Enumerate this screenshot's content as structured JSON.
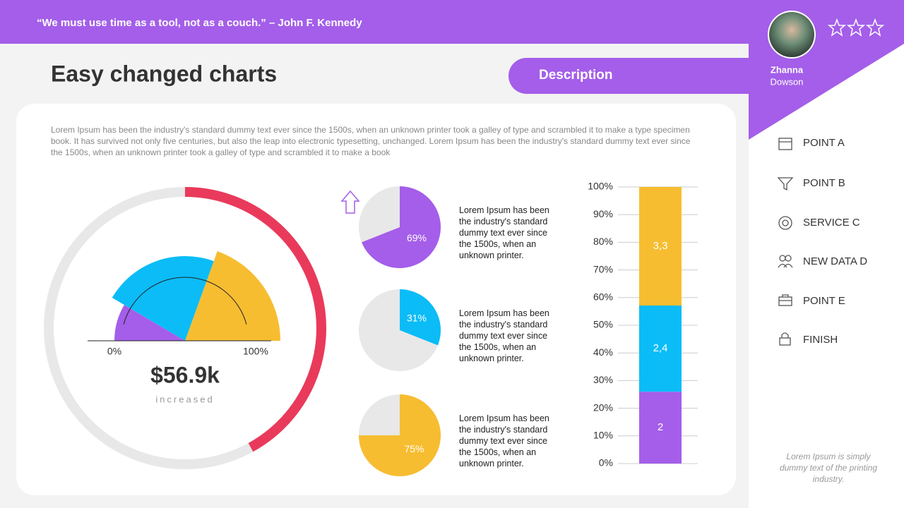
{
  "header": {
    "quote": "“We must use time as a tool, not as a couch.” – John F. Kennedy"
  },
  "title": "Easy changed charts",
  "description_tab": "Description",
  "body_text": "Lorem Ipsum has been the industry's standard dummy text ever since the 1500s, when an unknown printer took a galley of type and scrambled it to make a type specimen book. It has survived not only five centuries, but also the leap into electronic typesetting, unchanged. Lorem Ipsum has been the industry's standard dummy text ever since the 1500s, when an unknown printer took a galley of type and scrambled it to make a book",
  "chart_data": [
    {
      "type": "gauge",
      "values": [
        17,
        44,
        39
      ],
      "colors": [
        "#a45ee9",
        "#0bbcf7",
        "#f7bd31"
      ],
      "xlim": [
        0,
        100
      ],
      "xticks": [
        {
          "value": 0,
          "label": "0%"
        },
        {
          "value": 100,
          "label": "100%"
        }
      ],
      "ring": {
        "value": 42,
        "color": "#e93a5b",
        "track_color": "#e8e8e8"
      },
      "value_label": "$56.9k",
      "caption": "increased"
    },
    {
      "type": "pie",
      "values": [
        69
      ],
      "value_labels": [
        "69%"
      ],
      "color": "#a45ee9",
      "track_color": "#e8e8e8",
      "text": "Lorem Ipsum has been the industry's standard dummy text ever since the 1500s, when an unknown printer."
    },
    {
      "type": "pie",
      "values": [
        31
      ],
      "value_labels": [
        "31%"
      ],
      "color": "#0bbcf7",
      "track_color": "#e8e8e8",
      "text": "Lorem Ipsum has been the industry's standard dummy text ever since the 1500s, when an unknown printer."
    },
    {
      "type": "pie",
      "values": [
        75
      ],
      "value_labels": [
        "75%"
      ],
      "color": "#f7bd31",
      "track_color": "#e8e8e8",
      "text": "Lorem Ipsum has been the industry's standard dummy text ever since the 1500s, when an unknown printer."
    },
    {
      "type": "stacked-bar",
      "series": [
        {
          "color": "#a45ee9",
          "values": [
            2
          ],
          "value_labels": [
            "2"
          ]
        },
        {
          "color": "#0bbcf7",
          "values": [
            2.4
          ],
          "value_labels": [
            "2,4"
          ]
        },
        {
          "color": "#f7bd31",
          "values": [
            3.3
          ],
          "value_labels": [
            "3,3"
          ]
        }
      ],
      "ylim": [
        0,
        100
      ],
      "yticks": [
        {
          "value": 0,
          "label": "0%"
        },
        {
          "value": 10,
          "label": "10%"
        },
        {
          "value": 20,
          "label": "20%"
        },
        {
          "value": 30,
          "label": "30%"
        },
        {
          "value": 40,
          "label": "40%"
        },
        {
          "value": 50,
          "label": "50%"
        },
        {
          "value": 60,
          "label": "60%"
        },
        {
          "value": 70,
          "label": "70%"
        },
        {
          "value": 80,
          "label": "80%"
        },
        {
          "value": 90,
          "label": "90%"
        },
        {
          "value": 100,
          "label": "100%"
        }
      ],
      "grid": true
    }
  ],
  "profile": {
    "first_name": "Zhanna",
    "last_name": "Dowson"
  },
  "menu": [
    "POINT A",
    "POINT B",
    "SERVICE C",
    "NEW DATA D",
    "POINT E",
    "FINISH"
  ],
  "footer_note": "Lorem Ipsum is simply dummy text of the printing industry."
}
